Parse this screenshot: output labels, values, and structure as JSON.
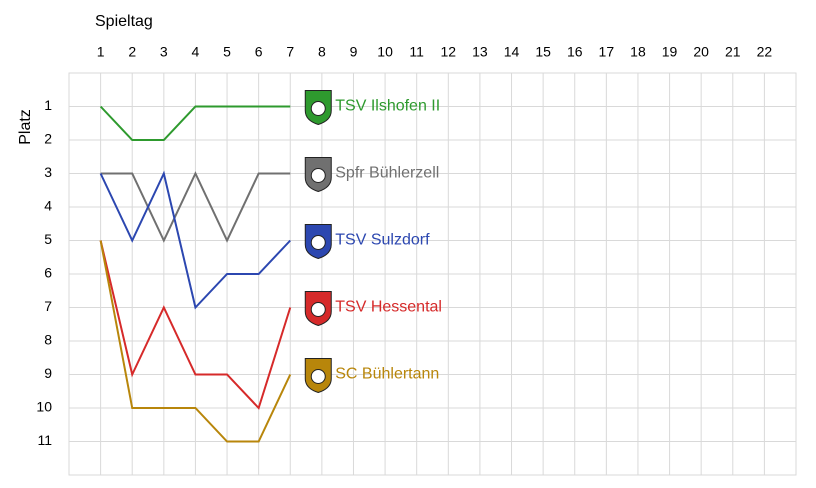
{
  "chart_data": {
    "type": "line",
    "x_label": "Spieltag",
    "y_label": "Platz",
    "x": [
      1,
      2,
      3,
      4,
      5,
      6,
      7
    ],
    "xlim": [
      0,
      23
    ],
    "xticks": [
      1,
      2,
      3,
      4,
      5,
      6,
      7,
      8,
      9,
      10,
      11,
      12,
      13,
      14,
      15,
      16,
      17,
      18,
      19,
      20,
      21,
      22
    ],
    "ylim": [
      12,
      0
    ],
    "yticks": [
      1,
      2,
      3,
      4,
      5,
      6,
      7,
      8,
      9,
      10,
      11
    ],
    "grid": true,
    "y_inverted": true,
    "x_axis_position": "top",
    "series": [
      {
        "name": "TSV Ilshofen II",
        "color": "#2e9a2e",
        "values": [
          1,
          2,
          2,
          1,
          1,
          1,
          1
        ]
      },
      {
        "name": "Spfr Bühlerzell",
        "color": "#707070",
        "values": [
          3,
          3,
          5,
          3,
          5,
          3,
          3
        ]
      },
      {
        "name": "TSV Sulzdorf",
        "color": "#2c47b0",
        "values": [
          3,
          5,
          3,
          7,
          6,
          6,
          5
        ]
      },
      {
        "name": "TSV Hessental",
        "color": "#d62a2a",
        "values": [
          5,
          9,
          7,
          9,
          9,
          10,
          7
        ]
      },
      {
        "name": "SC Bühlertann",
        "color": "#b8860b",
        "values": [
          5,
          10,
          10,
          10,
          11,
          11,
          9
        ]
      }
    ]
  }
}
